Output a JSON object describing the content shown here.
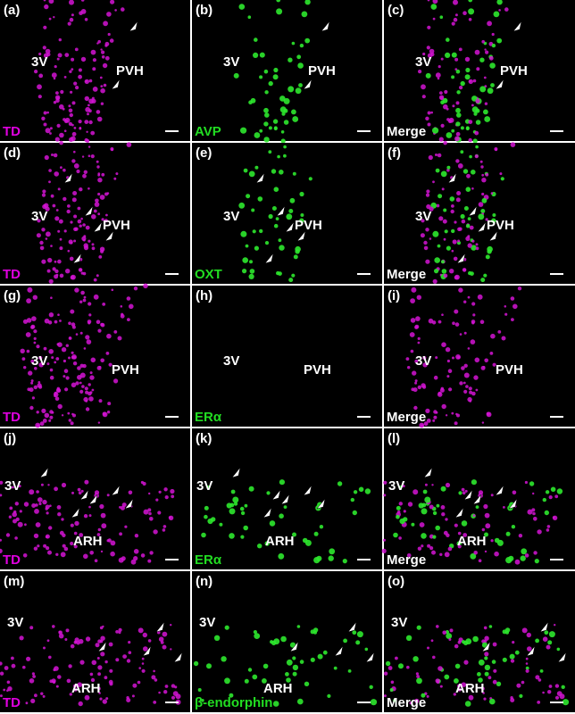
{
  "panels": [
    {
      "letter": "(a)",
      "regions": [
        "3V",
        "PVH"
      ],
      "stain": "TD"
    },
    {
      "letter": "(b)",
      "regions": [
        "3V",
        "PVH"
      ],
      "stain": "AVP"
    },
    {
      "letter": "(c)",
      "regions": [
        "3V",
        "PVH"
      ],
      "stain": "Merge"
    },
    {
      "letter": "(d)",
      "regions": [
        "3V",
        "PVH"
      ],
      "stain": "TD"
    },
    {
      "letter": "(e)",
      "regions": [
        "3V",
        "PVH"
      ],
      "stain": "OXT"
    },
    {
      "letter": "(f)",
      "regions": [
        "3V",
        "PVH"
      ],
      "stain": "Merge"
    },
    {
      "letter": "(g)",
      "regions": [
        "3V",
        "PVH"
      ],
      "stain": "TD"
    },
    {
      "letter": "(h)",
      "regions": [
        "3V",
        "PVH"
      ],
      "stain": "ERα"
    },
    {
      "letter": "(i)",
      "regions": [
        "3V",
        "PVH"
      ],
      "stain": "Merge"
    },
    {
      "letter": "(j)",
      "regions": [
        "3V",
        "ARH"
      ],
      "stain": "TD"
    },
    {
      "letter": "(k)",
      "regions": [
        "3V",
        "ARH"
      ],
      "stain": "ERα"
    },
    {
      "letter": "(l)",
      "regions": [
        "3V",
        "ARH"
      ],
      "stain": "Merge"
    },
    {
      "letter": "(m)",
      "regions": [
        "3V",
        "ARH"
      ],
      "stain": "TD"
    },
    {
      "letter": "(n)",
      "regions": [
        "3V",
        "ARH"
      ],
      "stain": "β-endorphin"
    },
    {
      "letter": "(o)",
      "regions": [
        "3V",
        "ARH"
      ],
      "stain": "Merge"
    }
  ]
}
